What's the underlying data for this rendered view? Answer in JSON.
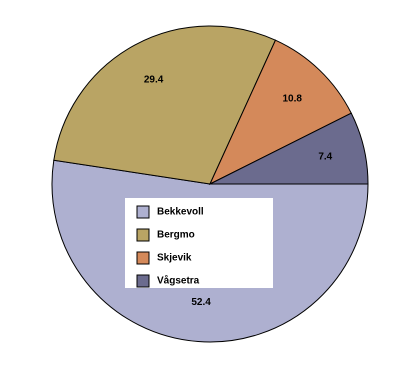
{
  "chart_data": {
    "type": "pie",
    "categories": [
      "Bekkevoll",
      "Bergmo",
      "Skjevik",
      "Vågsetra"
    ],
    "values": [
      52.4,
      29.4,
      10.8,
      7.4
    ],
    "colors": [
      "#aeb0d0",
      "#b9a464",
      "#d4895a",
      "#6b6b8e"
    ],
    "legend": "center"
  }
}
